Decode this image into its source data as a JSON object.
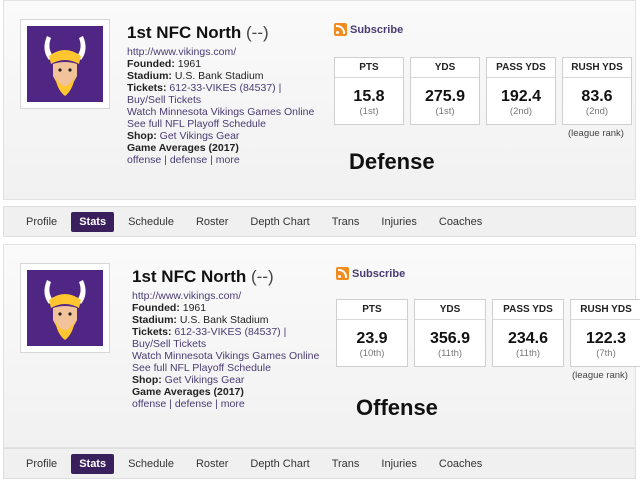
{
  "panels": [
    {
      "team_title": "1st NFC North",
      "record": "(--)",
      "url": "http://www.vikings.com/",
      "founded_label": "Founded:",
      "founded_value": "1961",
      "stadium_label": "Stadium:",
      "stadium_value": "U.S. Bank Stadium",
      "tickets_label": "Tickets:",
      "tickets_value": "612-33-VIKES (84537) |",
      "buy_sell": "Buy/Sell Tickets",
      "watch": "Watch Minnesota Vikings Games Online",
      "playoff": "See full NFL Playoff Schedule",
      "shop_label": "Shop:",
      "shop_value": "Get Vikings Gear",
      "game_averages": "Game Averages (2017)",
      "links": "offense | defense | more",
      "subscribe": "Subscribe",
      "stats": [
        {
          "label": "PTS",
          "value": "15.8",
          "rank": "(1st)"
        },
        {
          "label": "YDS",
          "value": "275.9",
          "rank": "(1st)"
        },
        {
          "label": "PASS YDS",
          "value": "192.4",
          "rank": "(2nd)"
        },
        {
          "label": "RUSH YDS",
          "value": "83.6",
          "rank": "(2nd)"
        }
      ],
      "league_rank": "(league rank)",
      "big_label": "Defense"
    },
    {
      "team_title": "1st NFC North",
      "record": "(--)",
      "url": "http://www.vikings.com/",
      "founded_label": "Founded:",
      "founded_value": "1961",
      "stadium_label": "Stadium:",
      "stadium_value": "U.S. Bank Stadium",
      "tickets_label": "Tickets:",
      "tickets_value": "612-33-VIKES (84537) |",
      "buy_sell": "Buy/Sell Tickets",
      "watch": "Watch Minnesota Vikings Games Online",
      "playoff": "See full NFL Playoff Schedule",
      "shop_label": "Shop:",
      "shop_value": "Get Vikings Gear",
      "game_averages": "Game Averages (2017)",
      "links": "offense | defense | more",
      "subscribe": "Subscribe",
      "stats": [
        {
          "label": "PTS",
          "value": "23.9",
          "rank": "(10th)"
        },
        {
          "label": "YDS",
          "value": "356.9",
          "rank": "(11th)"
        },
        {
          "label": "PASS YDS",
          "value": "234.6",
          "rank": "(11th)"
        },
        {
          "label": "RUSH YDS",
          "value": "122.3",
          "rank": "(7th)"
        }
      ],
      "league_rank": "(league rank)",
      "big_label": "Offense"
    }
  ],
  "nav": [
    "Profile",
    "Stats",
    "Schedule",
    "Roster",
    "Depth Chart",
    "Trans",
    "Injuries",
    "Coaches"
  ],
  "nav_active": "Stats",
  "colors": {
    "brand_purple": "#4f2683",
    "nav_active": "#3a1f5d",
    "rss": "#f28c1e"
  },
  "icons": {
    "logo": "vikings-logo",
    "rss": "rss-icon"
  }
}
